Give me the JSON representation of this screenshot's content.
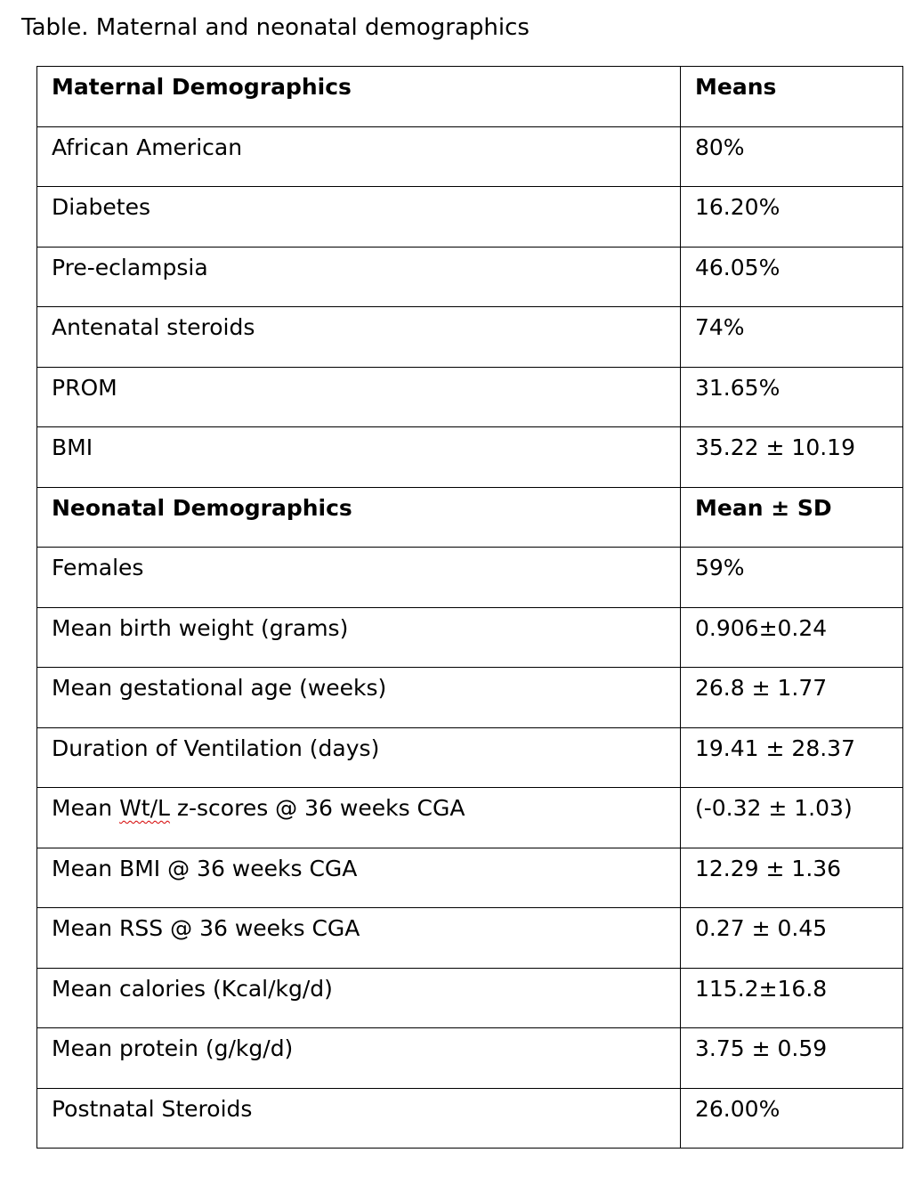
{
  "document": {
    "caption": "Table. Maternal and neonatal demographics"
  },
  "table": {
    "rows": [
      {
        "label": "Maternal Demographics",
        "value": "Means",
        "type": "section"
      },
      {
        "label": "African American",
        "value": "80%"
      },
      {
        "label": "Diabetes",
        "value": "16.20%"
      },
      {
        "label": "Pre-eclampsia",
        "value": "46.05%"
      },
      {
        "label": "Antenatal steroids",
        "value": "74%"
      },
      {
        "label": "PROM",
        "value": "31.65%"
      },
      {
        "label": "BMI",
        "value": "35.22 ± 10.19"
      },
      {
        "label": "Neonatal Demographics",
        "value": "Mean ± SD",
        "type": "section"
      },
      {
        "label": "Females",
        "value": "59%"
      },
      {
        "label": "Mean birth weight (grams)",
        "value": "0.906±0.24"
      },
      {
        "label": "Mean gestational age (weeks)",
        "value": "26.8 ± 1.77"
      },
      {
        "label": "Duration of Ventilation (days)",
        "value": "19.41 ± 28.37"
      },
      {
        "label_parts": [
          "Mean ",
          "Wt/L",
          " z-scores @ 36 weeks CGA"
        ],
        "value": "(-0.32 ± 1.03)"
      },
      {
        "label": "Mean BMI @ 36 weeks CGA",
        "value": "12.29 ± 1.36"
      },
      {
        "label": "Mean RSS @ 36 weeks CGA",
        "value": "0.27 ± 0.45"
      },
      {
        "label": "Mean calories (Kcal/kg/d)",
        "value": "115.2±16.8"
      },
      {
        "label": "Mean protein (g/kg/d)",
        "value": "3.75 ± 0.59"
      },
      {
        "label": "Postnatal Steroids",
        "value": "26.00%"
      }
    ]
  },
  "colors": {
    "text": "#000000",
    "border": "#000000",
    "spellcheck_underline": "#d40000"
  }
}
